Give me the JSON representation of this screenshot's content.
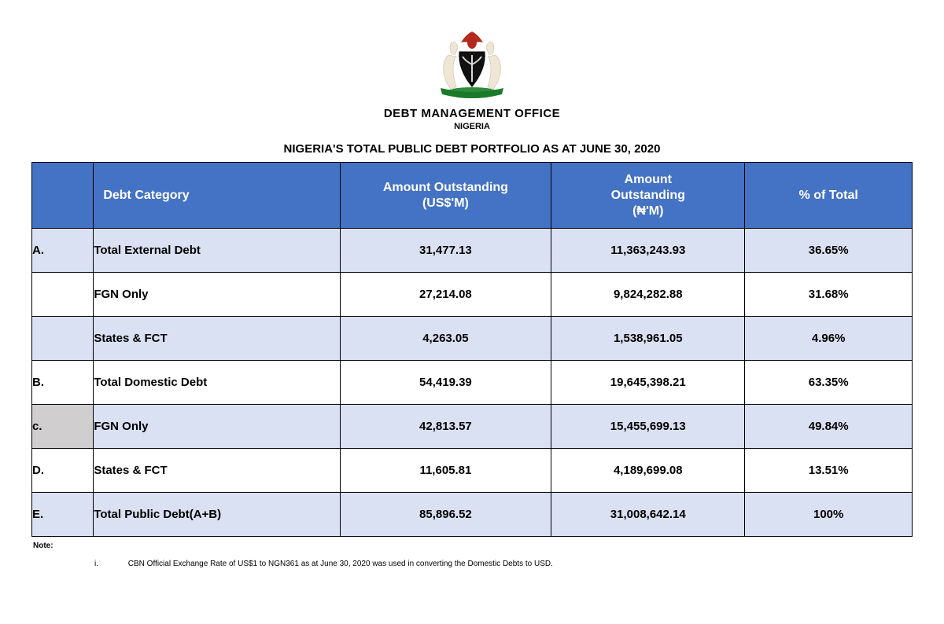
{
  "header": {
    "org_title": "DEBT MANAGEMENT OFFICE",
    "org_sub": "NIGERIA",
    "doc_title": "NIGERIA'S TOTAL PUBLIC DEBT PORTFOLIO AS AT JUNE 30, 2020"
  },
  "crest": {
    "eagle_color": "#b22a1e",
    "shield_color": "#111111",
    "horse_color": "#efe6d6",
    "banner_color": "#1b7a2a",
    "base_color": "#2e8b3a"
  },
  "table": {
    "header_bg": "#4472c4",
    "header_fg": "#ffffff",
    "band_light": "#d9e1f2",
    "band_white": "#ffffff",
    "band_grey": "#d0cece",
    "border_color": "#000000",
    "columns": {
      "key": "",
      "category": "Debt Category",
      "usd": "Amount Outstanding\n(US$'M)",
      "ngn": "Amount\nOutstanding\n(₦'M)",
      "pct": "% of Total"
    },
    "rows": [
      {
        "key": "A.",
        "category": "Total External Debt",
        "usd": "31,477.13",
        "ngn": "11,363,243.93",
        "pct": "36.65%",
        "band": "a"
      },
      {
        "key": "",
        "category": "FGN Only",
        "usd": "27,214.08",
        "ngn": "9,824,282.88",
        "pct": "31.68%",
        "band": "b"
      },
      {
        "key": "",
        "category": "States & FCT",
        "usd": "4,263.05",
        "ngn": "1,538,961.05",
        "pct": "4.96%",
        "band": "a"
      },
      {
        "key": "B.",
        "category": "Total Domestic Debt",
        "usd": "54,419.39",
        "ngn": "19,645,398.21",
        "pct": "63.35%",
        "band": "b"
      },
      {
        "key": "c.",
        "category": "FGN Only",
        "usd": "42,813.57",
        "ngn": "15,455,699.13",
        "pct": "49.84%",
        "band": "a",
        "key_grey": true
      },
      {
        "key": "D.",
        "category": "States & FCT",
        "usd": "11,605.81",
        "ngn": "4,189,699.08",
        "pct": "13.51%",
        "band": "b"
      },
      {
        "key": "E.",
        "category": "Total Public Debt(A+B)",
        "usd": "85,896.52",
        "ngn": "31,008,642.14",
        "pct": "100%",
        "band": "a"
      }
    ]
  },
  "notes": {
    "label": "Note:",
    "items": [
      {
        "marker": "i.",
        "text": "CBN Official Exchange Rate of US$1 to NGN361 as at June 30, 2020 was used in converting the Domestic Debts to USD."
      }
    ]
  }
}
